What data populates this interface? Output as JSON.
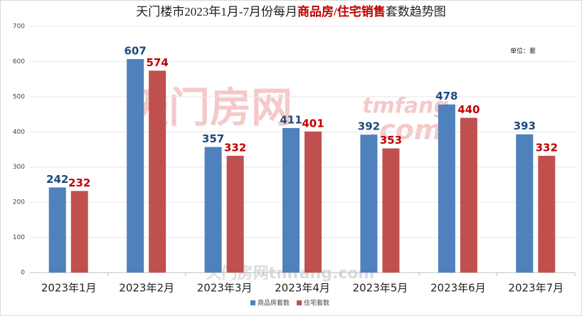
{
  "chart_data": {
    "type": "bar",
    "title_parts": [
      "天门楼市2023年1月-7月份每月",
      "商品房/住宅销售",
      "套数趋势图"
    ],
    "title_colors": [
      "#222222",
      "#c00000",
      "#222222"
    ],
    "unit_label": "单位：套",
    "watermarks": [
      "天门房网",
      "tmfang",
      ".com",
      "天门房网tmfang.com"
    ],
    "categories": [
      "2023年1月",
      "2023年2月",
      "2023年3月",
      "2023年4月",
      "2023年5月",
      "2023年6月",
      "2023年7月"
    ],
    "series": [
      {
        "name": "商品房套数",
        "color": "#4f81bd",
        "label_color": "#1f497d",
        "values": [
          242,
          607,
          357,
          411,
          392,
          478,
          393
        ]
      },
      {
        "name": "住宅套数",
        "color": "#c0504d",
        "label_color": "#c00000",
        "values": [
          232,
          574,
          332,
          401,
          353,
          440,
          332
        ]
      }
    ],
    "ylim": [
      0,
      700
    ],
    "yticks": [
      0,
      100,
      200,
      300,
      400,
      500,
      600,
      700
    ],
    "grid": true,
    "legend": "bottom"
  }
}
